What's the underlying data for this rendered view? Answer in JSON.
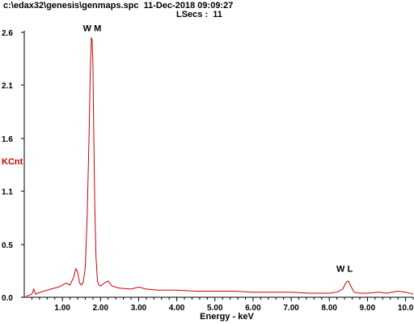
{
  "header": {
    "file_line": "c:\\edax32\\genesis\\genmaps.spc  11-Dec-2018 09:09:27",
    "lsecs_line": "LSecs :  11"
  },
  "colors": {
    "spectrum": "#cc0000",
    "axis": "#000000",
    "ylabel": "#cc0000"
  },
  "chart_data": {
    "type": "line",
    "title": "",
    "xlabel": "Energy - keV",
    "ylabel": "KCnt",
    "xlim": [
      0,
      10.2
    ],
    "ylim": [
      0,
      2.6
    ],
    "x_ticks": [
      "1.00",
      "2.00",
      "3.00",
      "4.00",
      "5.00",
      "6.00",
      "7.00",
      "8.00",
      "9.00",
      "10.0"
    ],
    "y_ticks": [
      "0.0",
      "0.5",
      "1.1",
      "1.6",
      "2.1",
      "2.6"
    ],
    "annotations": [
      {
        "text": "W M",
        "x": 1.78,
        "y": 2.58
      },
      {
        "text": "W L",
        "x": 8.4,
        "y": 0.22
      }
    ],
    "series": [
      {
        "x": [
          0.05,
          0.2,
          0.25,
          0.3,
          0.35,
          0.5,
          0.7,
          0.9,
          1.0,
          1.1,
          1.2,
          1.3,
          1.35,
          1.4,
          1.45,
          1.5,
          1.55,
          1.6,
          1.65,
          1.7,
          1.73,
          1.76,
          1.78,
          1.8,
          1.82,
          1.85,
          1.88,
          1.92,
          1.96,
          2.0,
          2.1,
          2.2,
          2.3,
          2.5,
          2.8,
          3.0,
          3.2,
          3.5,
          4.0,
          4.5,
          5.0,
          5.5,
          6.0,
          6.5,
          7.0,
          7.5,
          8.0,
          8.2,
          8.35,
          8.45,
          8.5,
          8.55,
          8.65,
          8.8,
          9.0,
          9.3,
          9.5,
          9.8,
          10.0,
          10.2
        ],
        "y": [
          0.01,
          0.03,
          0.08,
          0.03,
          0.04,
          0.06,
          0.08,
          0.1,
          0.12,
          0.14,
          0.12,
          0.2,
          0.28,
          0.25,
          0.14,
          0.12,
          0.15,
          0.3,
          0.8,
          1.6,
          2.2,
          2.55,
          2.53,
          2.3,
          1.7,
          0.9,
          0.4,
          0.16,
          0.12,
          0.11,
          0.14,
          0.16,
          0.11,
          0.09,
          0.08,
          0.1,
          0.08,
          0.07,
          0.07,
          0.06,
          0.06,
          0.06,
          0.05,
          0.05,
          0.05,
          0.04,
          0.04,
          0.05,
          0.08,
          0.15,
          0.16,
          0.12,
          0.05,
          0.04,
          0.04,
          0.05,
          0.04,
          0.06,
          0.05,
          0.03
        ]
      }
    ]
  }
}
